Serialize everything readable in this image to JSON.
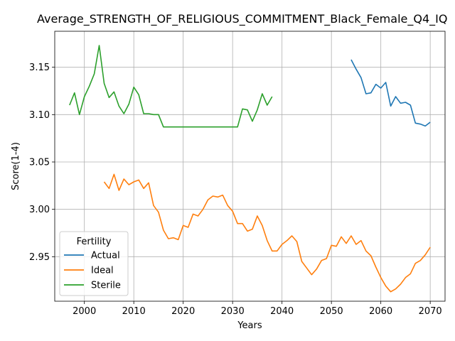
{
  "chart_data": {
    "type": "line",
    "title": "Average_STRENGTH_OF_RELIGIOUS_COMMITMENT_Black_Female_Q4_IQ",
    "xlabel": "Years",
    "ylabel": "Score(1-4)",
    "xlim": [
      1994,
      2073
    ],
    "ylim": [
      2.903,
      3.188
    ],
    "xticks": [
      2000,
      2010,
      2020,
      2030,
      2040,
      2050,
      2060,
      2070
    ],
    "yticks": [
      2.95,
      3.0,
      3.05,
      3.1,
      3.15
    ],
    "ytick_labels": [
      "2.95",
      "3.00",
      "3.05",
      "3.10",
      "3.15"
    ],
    "grid": true,
    "legend": {
      "title": "Fertility",
      "placement": "lower-left"
    },
    "series": [
      {
        "name": "Actual",
        "color": "#1f77b4",
        "x": [
          2054,
          2055,
          2056,
          2057,
          2058,
          2059,
          2060,
          2061,
          2062,
          2063,
          2064,
          2065,
          2066,
          2067,
          2068,
          2069,
          2070
        ],
        "y": [
          3.158,
          3.148,
          3.139,
          3.122,
          3.123,
          3.132,
          3.128,
          3.134,
          3.109,
          3.119,
          3.112,
          3.113,
          3.11,
          3.091,
          3.09,
          3.088,
          3.092
        ]
      },
      {
        "name": "Ideal",
        "color": "#ff7f0e",
        "x": [
          2004,
          2005,
          2006,
          2007,
          2008,
          2009,
          2010,
          2011,
          2012,
          2013,
          2014,
          2015,
          2016,
          2017,
          2018,
          2019,
          2020,
          2021,
          2022,
          2023,
          2024,
          2025,
          2026,
          2027,
          2028,
          2029,
          2030,
          2031,
          2032,
          2033,
          2034,
          2035,
          2036,
          2037,
          2038,
          2039,
          2040,
          2041,
          2042,
          2043,
          2044,
          2045,
          2046,
          2047,
          2048,
          2049,
          2050,
          2051,
          2052,
          2053,
          2054,
          2055,
          2056,
          2057,
          2058,
          2059,
          2060,
          2061,
          2062,
          2063,
          2064,
          2065,
          2066,
          2067,
          2068,
          2069,
          2070
        ],
        "y": [
          3.029,
          3.022,
          3.037,
          3.02,
          3.032,
          3.026,
          3.029,
          3.031,
          3.022,
          3.028,
          3.004,
          2.997,
          2.978,
          2.969,
          2.97,
          2.968,
          2.983,
          2.981,
          2.995,
          2.993,
          3.0,
          3.01,
          3.014,
          3.013,
          3.015,
          3.004,
          2.998,
          2.985,
          2.985,
          2.977,
          2.979,
          2.993,
          2.983,
          2.967,
          2.956,
          2.956,
          2.963,
          2.967,
          2.972,
          2.966,
          2.945,
          2.938,
          2.931,
          2.937,
          2.946,
          2.948,
          2.962,
          2.961,
          2.971,
          2.964,
          2.972,
          2.963,
          2.967,
          2.956,
          2.951,
          2.939,
          2.928,
          2.919,
          2.913,
          2.916,
          2.921,
          2.928,
          2.932,
          2.943,
          2.946,
          2.952,
          2.96
        ]
      },
      {
        "name": "Sterile",
        "color": "#2ca02c",
        "x": [
          1997,
          1998,
          1999,
          2000,
          2001,
          2002,
          2003,
          2004,
          2005,
          2006,
          2007,
          2008,
          2009,
          2010,
          2011,
          2012,
          2013,
          2014,
          2015,
          2016,
          2017,
          2018,
          2019,
          2020,
          2021,
          2022,
          2023,
          2024,
          2025,
          2026,
          2027,
          2028,
          2029,
          2030,
          2031,
          2032,
          2033,
          2034,
          2035,
          2036,
          2037,
          2038
        ],
        "y": [
          3.11,
          3.123,
          3.1,
          3.119,
          3.13,
          3.143,
          3.173,
          3.133,
          3.118,
          3.124,
          3.109,
          3.101,
          3.111,
          3.129,
          3.121,
          3.101,
          3.101,
          3.1,
          3.1,
          3.087,
          3.087,
          3.087,
          3.087,
          3.087,
          3.087,
          3.087,
          3.087,
          3.087,
          3.087,
          3.087,
          3.087,
          3.087,
          3.087,
          3.087,
          3.087,
          3.106,
          3.105,
          3.093,
          3.105,
          3.122,
          3.11,
          3.119
        ]
      }
    ]
  }
}
